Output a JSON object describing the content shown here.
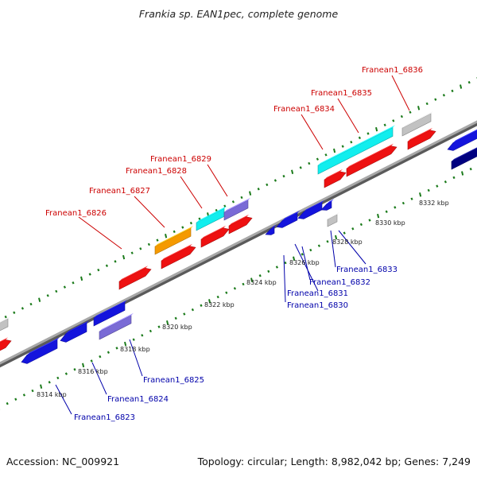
{
  "title": "Frankia sp. EAN1pec, complete genome",
  "footer": {
    "accession": "Accession: NC_009921",
    "summary": "Topology: circular; Length: 8,982,042 bp; Genes: 7,249"
  },
  "colors": {
    "backbone": "#8a8a8a",
    "tick": "#1a7a1a",
    "top_label": "#cc0000",
    "bottom_label": "#0000aa",
    "red": "#ee1111",
    "blue": "#1414dd",
    "cyan": "#11eeee",
    "orange": "#f59a00",
    "gray": "#c2c2c2",
    "slate": "#7a6bd6",
    "navy": "#000080"
  },
  "ticks": {
    "labels": [
      "8314 kbp",
      "8316 kbp",
      "8318 kbp",
      "8320 kbp",
      "8322 kbp",
      "8324 kbp",
      "8326 kbp",
      "8328 kbp",
      "8330 kbp",
      "8332 kbp"
    ]
  },
  "labels_top": [
    "Franean1_6826",
    "Franean1_6827",
    "Franean1_6828",
    "Franean1_6829",
    "Franean1_6834",
    "Franean1_6835",
    "Franean1_6836"
  ],
  "labels_bottom": [
    "Franean1_6823",
    "Franean1_6824",
    "Franean1_6825",
    "Franean1_6830",
    "Franean1_6831",
    "Franean1_6832",
    "Franean1_6833"
  ]
}
